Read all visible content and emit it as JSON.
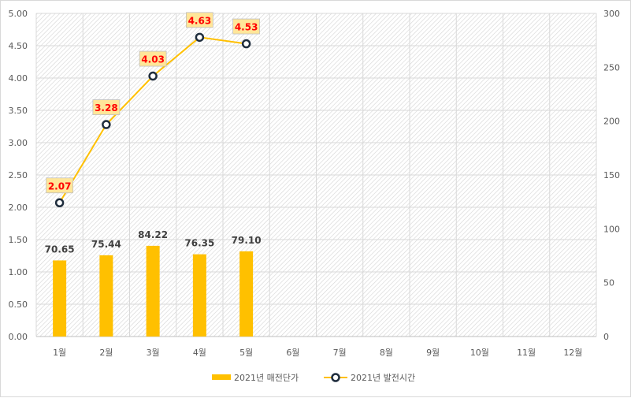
{
  "chart_data": {
    "type": "bar+line",
    "categories": [
      "1월",
      "2월",
      "3월",
      "4월",
      "5월",
      "6월",
      "7월",
      "8월",
      "9월",
      "10월",
      "11월",
      "12월"
    ],
    "series": [
      {
        "name": "2021년 매전단가",
        "kind": "bar",
        "axis": "right",
        "values": [
          70.65,
          75.44,
          84.22,
          76.35,
          79.1,
          null,
          null,
          null,
          null,
          null,
          null,
          null
        ],
        "labels": [
          "70.65",
          "75.44",
          "84.22",
          "76.35",
          "79.10"
        ],
        "color": "#ffc000"
      },
      {
        "name": "2021년 발전시간",
        "kind": "line",
        "axis": "left",
        "values": [
          2.07,
          3.28,
          4.03,
          4.63,
          4.53,
          null,
          null,
          null,
          null,
          null,
          null,
          null
        ],
        "labels": [
          "2.07",
          "3.28",
          "4.03",
          "4.63",
          "4.53"
        ],
        "color": "#ffc000",
        "marker_color": "#1f2d3d",
        "label_color": "#ff0000",
        "label_bg": "#ffe699"
      }
    ],
    "y_left": {
      "ticks": [
        "0.00",
        "0.50",
        "1.00",
        "1.50",
        "2.00",
        "2.50",
        "3.00",
        "3.50",
        "4.00",
        "4.50",
        "5.00"
      ],
      "min": 0,
      "max": 5
    },
    "y_right": {
      "ticks": [
        "0",
        "50",
        "100",
        "150",
        "200",
        "250",
        "300"
      ],
      "min": 0,
      "max": 300
    },
    "grid": true,
    "legend_position": "bottom"
  }
}
